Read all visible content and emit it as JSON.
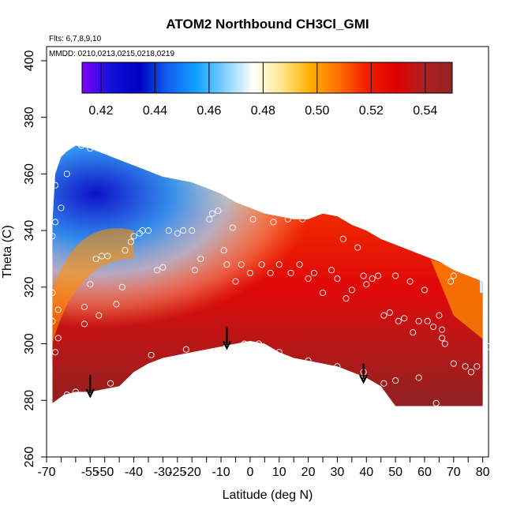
{
  "chart_data": {
    "type": "heatmap",
    "title": "ATOM2 Northbound CH3Cl_GMI",
    "subtitle_flights": "Flts: 6,7,8,9,10",
    "subtitle_dates": "MMDD: 0210,0213,0215,0218,0219",
    "xlabel": "Latitude (deg N)",
    "ylabel": "Theta (C)",
    "xlim": [
      -70,
      82
    ],
    "ylim": [
      260,
      405
    ],
    "x_ticks": [
      -70,
      -55,
      -40,
      -25,
      -10,
      10,
      30,
      50,
      70
    ],
    "x_tick_labels": [
      "-70",
      "-55",
      "-40",
      "-25",
      "-10",
      "10",
      "30",
      "50",
      "70"
    ],
    "x_minor_ticks": [
      -65,
      -60,
      -50,
      -45,
      -35,
      -30,
      -20,
      -15,
      -5,
      0,
      5,
      15,
      20,
      25,
      35,
      40,
      45,
      55,
      60,
      65,
      75,
      80
    ],
    "x_minor_tick_labels": [
      "",
      "",
      "-50",
      "",
      "",
      "-30",
      "-20",
      "",
      "",
      "0",
      "",
      "",
      "20",
      "",
      "",
      "40",
      "",
      "",
      "60",
      "",
      "",
      "80"
    ],
    "y_ticks": [
      260,
      280,
      300,
      320,
      340,
      360,
      380,
      400
    ],
    "y_tick_labels": [
      "260",
      "280",
      "300",
      "320",
      "340",
      "360",
      "380",
      "400"
    ],
    "colorbar": {
      "range": [
        0.413,
        0.55
      ],
      "ticks": [
        0.42,
        0.44,
        0.46,
        0.48,
        0.5,
        0.52,
        0.54
      ],
      "tick_labels": [
        "0.42",
        "0.44",
        "0.46",
        "0.48",
        "0.50",
        "0.52",
        "0.54"
      ],
      "stops": [
        "#8000ff",
        "#1010d8",
        "#0000c0",
        "#1060f0",
        "#10a0ff",
        "#80d0ff",
        "#ffffff",
        "#ffe890",
        "#ffb000",
        "#ff7000",
        "#f02000",
        "#e00000",
        "#b02020",
        "#902424"
      ]
    },
    "upper_boundary": [
      [
        -68,
        342
      ],
      [
        -67,
        360
      ],
      [
        -65,
        366
      ],
      [
        -63,
        368
      ],
      [
        -60,
        370
      ],
      [
        -55,
        369
      ],
      [
        -50,
        367
      ],
      [
        -45,
        365
      ],
      [
        -40,
        363
      ],
      [
        -35,
        361
      ],
      [
        -30,
        359
      ],
      [
        -25,
        358
      ],
      [
        -20,
        357
      ],
      [
        -15,
        355
      ],
      [
        -10,
        353
      ],
      [
        -5,
        350
      ],
      [
        0,
        348
      ],
      [
        5,
        346
      ],
      [
        10,
        345
      ],
      [
        15,
        344
      ],
      [
        20,
        344
      ],
      [
        25,
        346
      ],
      [
        30,
        345
      ],
      [
        35,
        342
      ],
      [
        40,
        340
      ],
      [
        45,
        337
      ],
      [
        50,
        335
      ],
      [
        55,
        333
      ],
      [
        60,
        331
      ],
      [
        65,
        329
      ],
      [
        70,
        326
      ],
      [
        75,
        324
      ],
      [
        80,
        322
      ]
    ],
    "lower_boundary": [
      [
        -68,
        279
      ],
      [
        -64,
        282
      ],
      [
        -60,
        283
      ],
      [
        -55,
        283
      ],
      [
        -50,
        284
      ],
      [
        -45,
        285
      ],
      [
        -40,
        290
      ],
      [
        -35,
        293
      ],
      [
        -30,
        295
      ],
      [
        -20,
        297
      ],
      [
        -10,
        299
      ],
      [
        -5,
        300
      ],
      [
        0,
        301
      ],
      [
        5,
        300
      ],
      [
        10,
        297
      ],
      [
        15,
        295
      ],
      [
        20,
        294
      ],
      [
        25,
        293
      ],
      [
        30,
        292
      ],
      [
        35,
        290
      ],
      [
        40,
        288
      ],
      [
        45,
        285
      ],
      [
        50,
        278
      ],
      [
        80,
        278
      ]
    ],
    "arrows": [
      {
        "lat": -55,
        "theta_top": 289,
        "theta_bottom": 282
      },
      {
        "lat": -8,
        "theta_top": 306,
        "theta_bottom": 299
      },
      {
        "lat": 39,
        "theta_top": 293,
        "theta_bottom": 287
      }
    ],
    "points": [
      [
        -68,
        278
      ],
      [
        -67,
        297
      ],
      [
        -66,
        302
      ],
      [
        -68,
        308
      ],
      [
        -66,
        312
      ],
      [
        -68,
        318
      ],
      [
        -68,
        338
      ],
      [
        -67,
        343
      ],
      [
        -65,
        348
      ],
      [
        -67,
        356
      ],
      [
        -63,
        360
      ],
      [
        -58,
        370
      ],
      [
        -55,
        369
      ],
      [
        -63,
        282
      ],
      [
        -60,
        283
      ],
      [
        -57,
        307
      ],
      [
        -57,
        313
      ],
      [
        -52,
        310
      ],
      [
        -55,
        321
      ],
      [
        -53,
        330
      ],
      [
        -51,
        331
      ],
      [
        -49,
        331
      ],
      [
        -46,
        314
      ],
      [
        -44,
        320
      ],
      [
        -43,
        333
      ],
      [
        -41,
        336
      ],
      [
        -40,
        338
      ],
      [
        -38,
        339
      ],
      [
        -37,
        340
      ],
      [
        -35,
        340
      ],
      [
        -32,
        326
      ],
      [
        -30,
        327
      ],
      [
        -28,
        340
      ],
      [
        -25,
        339
      ],
      [
        -23,
        340
      ],
      [
        -20,
        340
      ],
      [
        -19,
        326
      ],
      [
        -17,
        330
      ],
      [
        -14,
        344
      ],
      [
        -13,
        346
      ],
      [
        -11,
        347
      ],
      [
        -9,
        333
      ],
      [
        -6,
        341
      ],
      [
        -8,
        328
      ],
      [
        -5,
        322
      ],
      [
        -3,
        328
      ],
      [
        0,
        325
      ],
      [
        1,
        344
      ],
      [
        4,
        328
      ],
      [
        7,
        325
      ],
      [
        8,
        343
      ],
      [
        10,
        328
      ],
      [
        13,
        344
      ],
      [
        14,
        325
      ],
      [
        17,
        328
      ],
      [
        18,
        344
      ],
      [
        20,
        323
      ],
      [
        22,
        325
      ],
      [
        25,
        318
      ],
      [
        26,
        347
      ],
      [
        28,
        326
      ],
      [
        30,
        323
      ],
      [
        32,
        337
      ],
      [
        33,
        316
      ],
      [
        35,
        319
      ],
      [
        37,
        334
      ],
      [
        39,
        324
      ],
      [
        40,
        321
      ],
      [
        42,
        323
      ],
      [
        44,
        324
      ],
      [
        46,
        310
      ],
      [
        48,
        311
      ],
      [
        50,
        324
      ],
      [
        51,
        308
      ],
      [
        53,
        309
      ],
      [
        55,
        322
      ],
      [
        56,
        304
      ],
      [
        58,
        308
      ],
      [
        60,
        319
      ],
      [
        61,
        308
      ],
      [
        63,
        306
      ],
      [
        65,
        310
      ],
      [
        66,
        305
      ],
      [
        66,
        302
      ],
      [
        67,
        300
      ],
      [
        69,
        322
      ],
      [
        70,
        324
      ],
      [
        74,
        292
      ],
      [
        76,
        290
      ],
      [
        78,
        292
      ],
      [
        82,
        299
      ],
      [
        -48,
        286
      ],
      [
        -34,
        296
      ],
      [
        -22,
        298
      ],
      [
        -8,
        299
      ],
      [
        -2,
        300
      ],
      [
        3,
        300
      ],
      [
        10,
        297
      ],
      [
        20,
        294
      ],
      [
        30,
        292
      ],
      [
        39,
        290
      ],
      [
        46,
        286
      ],
      [
        50,
        287
      ],
      [
        58,
        288
      ],
      [
        64,
        279
      ],
      [
        70,
        293
      ]
    ]
  }
}
